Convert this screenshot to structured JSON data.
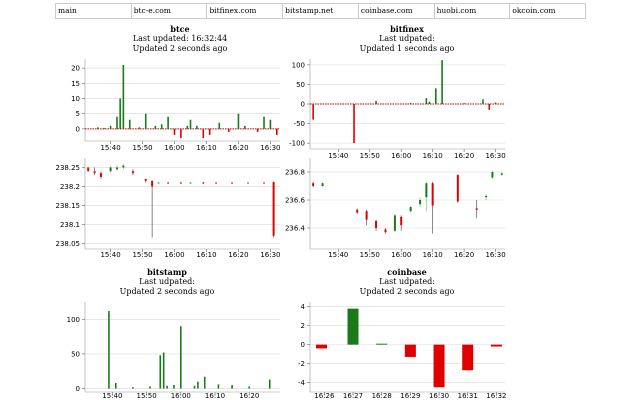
{
  "tabs": [
    "main",
    "btc-e.com",
    "bitfinex.com",
    "bitstamp.net",
    "coinbase.com",
    "huobi.com",
    "okcoin.com"
  ],
  "colors": {
    "up": "#1a7a1a",
    "down": "#e00000",
    "up_light": "#66dd66",
    "down_light": "#ffaaaa",
    "grid": "#d8d8d8",
    "zero_line": "#cc0000"
  },
  "panels": [
    {
      "name": "btce",
      "line1": "Last updated: 16:32:44",
      "line2": "Updated 2 seconds ago"
    },
    {
      "name": "bitfinex",
      "line1": "Last udpated:",
      "line2": "Updated 1 seconds ago"
    },
    {
      "name": "bitstamp",
      "line1": "Last udpated:",
      "line2": "Updated 2 seconds ago"
    },
    {
      "name": "coinbase",
      "line1": "Last udpated:",
      "line2": "Updated 2 seconds ago"
    }
  ],
  "chart_data": [
    {
      "id": "btce-volume",
      "type": "bar",
      "title": "btce",
      "xticks": [
        "15:40",
        "15:50",
        "16:00",
        "16:10",
        "16:20",
        "16:30"
      ],
      "yticks": [
        "0",
        "5",
        "10",
        "15",
        "20"
      ],
      "ylim": [
        -4,
        23
      ],
      "x": [
        "15:36",
        "15:38",
        "15:40",
        "15:42",
        "15:43",
        "15:44",
        "15:46",
        "15:49",
        "15:51",
        "15:54",
        "15:56",
        "15:58",
        "16:00",
        "16:02",
        "16:04",
        "16:05",
        "16:07",
        "16:09",
        "16:11",
        "16:14",
        "16:17",
        "16:20",
        "16:22",
        "16:26",
        "16:28",
        "16:30",
        "16:32"
      ],
      "values": [
        0.5,
        0.3,
        1,
        4,
        10,
        21,
        3,
        0.5,
        5,
        1,
        1.5,
        4,
        -2,
        -3,
        1,
        3,
        1,
        -3,
        -2,
        2,
        -1,
        5,
        1,
        -1,
        4,
        3,
        -2
      ]
    },
    {
      "id": "bitfinex-volume",
      "type": "bar",
      "title": "bitfinex",
      "xticks": [
        "15:40",
        "15:50",
        "16:00",
        "16:10",
        "16:20",
        "16:30"
      ],
      "yticks": [
        "100",
        "50",
        "0",
        "-50",
        "-100"
      ],
      "ylim": [
        -115,
        115
      ],
      "x": [
        "15:32",
        "15:45",
        "15:52",
        "16:03",
        "16:08",
        "16:09",
        "16:11",
        "16:13",
        "16:20",
        "16:26",
        "16:28",
        "16:30"
      ],
      "values": [
        -40,
        -100,
        8,
        3,
        15,
        6,
        40,
        112,
        2,
        12,
        -15,
        4
      ]
    },
    {
      "id": "btce-price",
      "type": "candlestick",
      "xticks": [
        "15:40",
        "15:50",
        "16:00",
        "16:10",
        "16:20",
        "16:30"
      ],
      "yticks": [
        "238.25",
        "238.2",
        "238.15",
        "238.1",
        "238.05"
      ],
      "ylim": [
        238.035,
        238.275
      ],
      "candles": [
        {
          "t": "15:33",
          "o": 238.25,
          "c": 238.24,
          "h": 238.25,
          "l": 238.24
        },
        {
          "t": "15:35",
          "o": 238.24,
          "c": 238.235,
          "h": 238.25,
          "l": 238.23
        },
        {
          "t": "15:37",
          "o": 238.235,
          "c": 238.225,
          "h": 238.24,
          "l": 238.22
        },
        {
          "t": "15:40",
          "o": 238.24,
          "c": 238.25,
          "h": 238.255,
          "l": 238.235
        },
        {
          "t": "15:42",
          "o": 238.245,
          "c": 238.25,
          "h": 238.255,
          "l": 238.24
        },
        {
          "t": "15:44",
          "o": 238.25,
          "c": 238.255,
          "h": 238.26,
          "l": 238.245
        },
        {
          "t": "15:47",
          "o": 238.24,
          "c": 238.235,
          "h": 238.245,
          "l": 238.23
        },
        {
          "t": "15:51",
          "o": 238.22,
          "c": 238.215,
          "h": 238.22,
          "l": 238.21
        },
        {
          "t": "15:53",
          "o": 238.215,
          "c": 238.2,
          "h": 238.215,
          "l": 238.065
        },
        {
          "t": "15:55",
          "o": 238.21,
          "c": 238.21,
          "h": 238.212,
          "l": 238.208
        },
        {
          "t": "15:58",
          "o": 238.21,
          "c": 238.209,
          "h": 238.212,
          "l": 238.207
        },
        {
          "t": "16:02",
          "o": 238.21,
          "c": 238.208,
          "h": 238.212,
          "l": 238.206
        },
        {
          "t": "16:05",
          "o": 238.209,
          "c": 238.21,
          "h": 238.211,
          "l": 238.207
        },
        {
          "t": "16:09",
          "o": 238.21,
          "c": 238.208,
          "h": 238.212,
          "l": 238.206
        },
        {
          "t": "16:13",
          "o": 238.21,
          "c": 238.209,
          "h": 238.211,
          "l": 238.207
        },
        {
          "t": "16:18",
          "o": 238.21,
          "c": 238.209,
          "h": 238.211,
          "l": 238.207
        },
        {
          "t": "16:23",
          "o": 238.209,
          "c": 238.21,
          "h": 238.212,
          "l": 238.207
        },
        {
          "t": "16:28",
          "o": 238.21,
          "c": 238.209,
          "h": 238.211,
          "l": 238.208
        },
        {
          "t": "16:31",
          "o": 238.212,
          "c": 238.07,
          "h": 238.212,
          "l": 238.065
        }
      ]
    },
    {
      "id": "bitfinex-price",
      "type": "candlestick",
      "xticks": [
        "15:40",
        "15:50",
        "16:00",
        "16:10",
        "16:20",
        "16:30"
      ],
      "yticks": [
        "236.8",
        "236.6",
        "236.4"
      ],
      "ylim": [
        236.25,
        236.9
      ],
      "candles": [
        {
          "t": "15:32",
          "o": 236.72,
          "c": 236.7,
          "h": 236.73,
          "l": 236.69
        },
        {
          "t": "15:35",
          "o": 236.7,
          "c": 236.72,
          "h": 236.73,
          "l": 236.69
        },
        {
          "t": "15:46",
          "o": 236.53,
          "c": 236.51,
          "h": 236.54,
          "l": 236.5
        },
        {
          "t": "15:49",
          "o": 236.52,
          "c": 236.46,
          "h": 236.53,
          "l": 236.42
        },
        {
          "t": "15:52",
          "o": 236.45,
          "c": 236.4,
          "h": 236.46,
          "l": 236.38
        },
        {
          "t": "15:55",
          "o": 236.39,
          "c": 236.37,
          "h": 236.4,
          "l": 236.36
        },
        {
          "t": "15:58",
          "o": 236.38,
          "c": 236.49,
          "h": 236.5,
          "l": 236.37
        },
        {
          "t": "16:00",
          "o": 236.48,
          "c": 236.42,
          "h": 236.49,
          "l": 236.38
        },
        {
          "t": "16:03",
          "o": 236.52,
          "c": 236.55,
          "h": 236.56,
          "l": 236.51
        },
        {
          "t": "16:06",
          "o": 236.57,
          "c": 236.6,
          "h": 236.62,
          "l": 236.55
        },
        {
          "t": "16:08",
          "o": 236.62,
          "c": 236.72,
          "h": 236.73,
          "l": 236.52
        },
        {
          "t": "16:10",
          "o": 236.72,
          "c": 236.56,
          "h": 236.73,
          "l": 236.36
        },
        {
          "t": "16:18",
          "o": 236.78,
          "c": 236.59,
          "h": 236.78,
          "l": 236.58
        },
        {
          "t": "16:24",
          "o": 236.54,
          "c": 236.53,
          "h": 236.6,
          "l": 236.47
        },
        {
          "t": "16:27",
          "o": 236.62,
          "c": 236.63,
          "h": 236.64,
          "l": 236.6
        },
        {
          "t": "16:29",
          "o": 236.76,
          "c": 236.8,
          "h": 236.81,
          "l": 236.75
        },
        {
          "t": "16:32",
          "o": 236.78,
          "c": 236.79,
          "h": 236.8,
          "l": 236.77
        }
      ]
    },
    {
      "id": "bitstamp-volume",
      "type": "bar",
      "title": "bitstamp",
      "xticks": [
        "15:40",
        "15:50",
        "16:00",
        "16:10",
        "16:20"
      ],
      "yticks": [
        "0",
        "50",
        "100"
      ],
      "ylim": [
        -5,
        125
      ],
      "x": [
        "15:39",
        "15:41",
        "15:46",
        "15:51",
        "15:54",
        "15:55",
        "15:56",
        "15:58",
        "16:00",
        "16:04",
        "16:05",
        "16:07",
        "16:11",
        "16:15",
        "16:20",
        "16:26"
      ],
      "values": [
        112,
        8,
        2,
        3,
        48,
        52,
        4,
        5,
        90,
        4,
        10,
        17,
        6,
        5,
        3,
        13
      ]
    },
    {
      "id": "coinbase-volume",
      "type": "bar",
      "title": "coinbase",
      "xticks": [
        "16:26",
        "16:27",
        "16:28",
        "16:29",
        "16:30",
        "16:31",
        "16:32"
      ],
      "yticks": [
        "4",
        "2",
        "0",
        "-2",
        "-4"
      ],
      "ylim": [
        -5,
        4.5
      ],
      "x": [
        -0.1,
        1,
        2,
        3,
        4,
        5,
        6
      ],
      "values": [
        -0.4,
        3.8,
        0.1,
        -1.3,
        -4.5,
        -2.7,
        -0.2
      ]
    }
  ]
}
